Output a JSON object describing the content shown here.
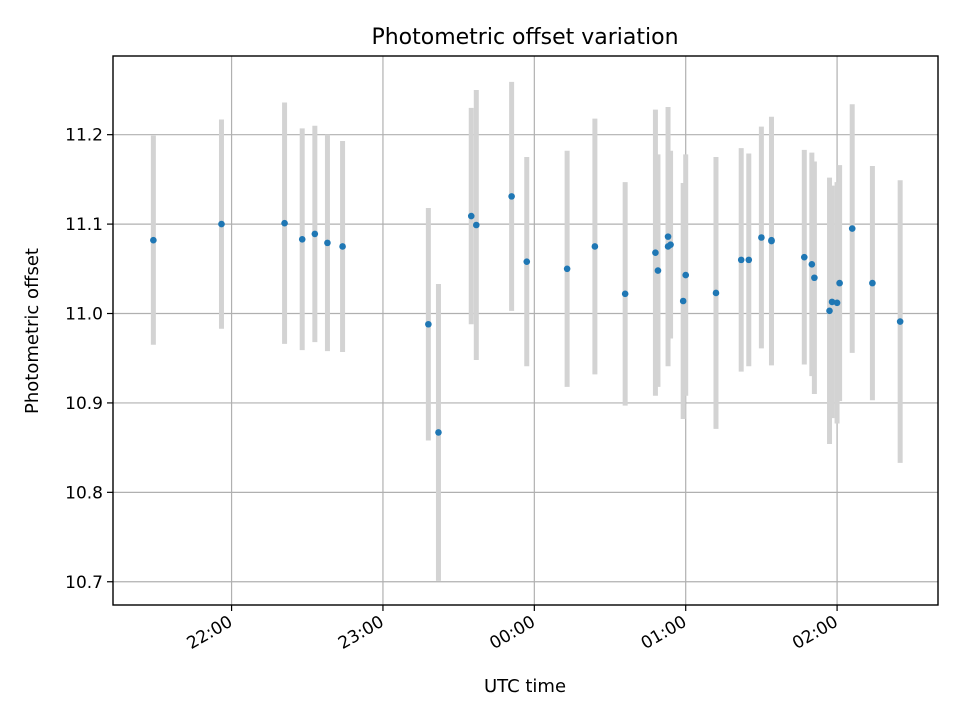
{
  "chart_data": {
    "type": "scatter",
    "title": "Photometric offset variation",
    "xlabel": "UTC time",
    "ylabel": "Photometric offset",
    "x_ticks": [
      "22:00",
      "23:00",
      "00:00",
      "01:00",
      "02:00"
    ],
    "y_ticks": [
      "10.7",
      "10.8",
      "10.9",
      "11.0",
      "11.1",
      "11.2"
    ],
    "xlim": [
      "21:13",
      "02:40"
    ],
    "ylim": [
      10.674,
      11.288
    ],
    "grid": true,
    "marker_color": "#1f77b4",
    "errorbar_color": "#d3d3d3",
    "points": [
      {
        "t": "21:29",
        "y": 11.082,
        "err": 0.117
      },
      {
        "t": "21:56",
        "y": 11.1,
        "err": 0.117
      },
      {
        "t": "22:21",
        "y": 11.101,
        "err": 0.135
      },
      {
        "t": "22:28",
        "y": 11.083,
        "err": 0.124
      },
      {
        "t": "22:33",
        "y": 11.089,
        "err": 0.121
      },
      {
        "t": "22:38",
        "y": 11.079,
        "err": 0.121
      },
      {
        "t": "22:44",
        "y": 11.075,
        "err": 0.118
      },
      {
        "t": "23:18",
        "y": 10.988,
        "err": 0.13
      },
      {
        "t": "23:22",
        "y": 10.867,
        "err": 0.166
      },
      {
        "t": "23:35",
        "y": 11.109,
        "err": 0.121
      },
      {
        "t": "23:37",
        "y": 11.099,
        "err": 0.151
      },
      {
        "t": "23:51",
        "y": 11.131,
        "err": 0.128
      },
      {
        "t": "23:57",
        "y": 11.058,
        "err": 0.117
      },
      {
        "t": "00:13",
        "y": 11.05,
        "err": 0.132
      },
      {
        "t": "00:24",
        "y": 11.075,
        "err": 0.143
      },
      {
        "t": "00:36",
        "y": 11.022,
        "err": 0.125
      },
      {
        "t": "00:48",
        "y": 11.068,
        "err": 0.16
      },
      {
        "t": "00:49",
        "y": 11.048,
        "err": 0.13
      },
      {
        "t": "00:53",
        "y": 11.086,
        "err": 0.145
      },
      {
        "t": "00:53",
        "y": 11.075,
        "err": 0.105
      },
      {
        "t": "00:54",
        "y": 11.077,
        "err": 0.105
      },
      {
        "t": "00:59",
        "y": 11.014,
        "err": 0.132
      },
      {
        "t": "01:00",
        "y": 11.043,
        "err": 0.135
      },
      {
        "t": "01:12",
        "y": 11.023,
        "err": 0.152
      },
      {
        "t": "01:22",
        "y": 11.06,
        "err": 0.125
      },
      {
        "t": "01:25",
        "y": 11.06,
        "err": 0.119
      },
      {
        "t": "01:30",
        "y": 11.085,
        "err": 0.124
      },
      {
        "t": "01:34",
        "y": 11.081,
        "err": 0.139
      },
      {
        "t": "01:34",
        "y": 11.082,
        "err": 0.135
      },
      {
        "t": "01:47",
        "y": 11.063,
        "err": 0.12
      },
      {
        "t": "01:50",
        "y": 11.055,
        "err": 0.125
      },
      {
        "t": "01:51",
        "y": 11.04,
        "err": 0.13
      },
      {
        "t": "01:57",
        "y": 11.003,
        "err": 0.149
      },
      {
        "t": "01:58",
        "y": 11.013,
        "err": 0.13
      },
      {
        "t": "02:00",
        "y": 11.012,
        "err": 0.135
      },
      {
        "t": "02:01",
        "y": 11.034,
        "err": 0.132
      },
      {
        "t": "02:06",
        "y": 11.095,
        "err": 0.139
      },
      {
        "t": "02:14",
        "y": 11.034,
        "err": 0.131
      },
      {
        "t": "02:25",
        "y": 10.991,
        "err": 0.158
      }
    ]
  }
}
